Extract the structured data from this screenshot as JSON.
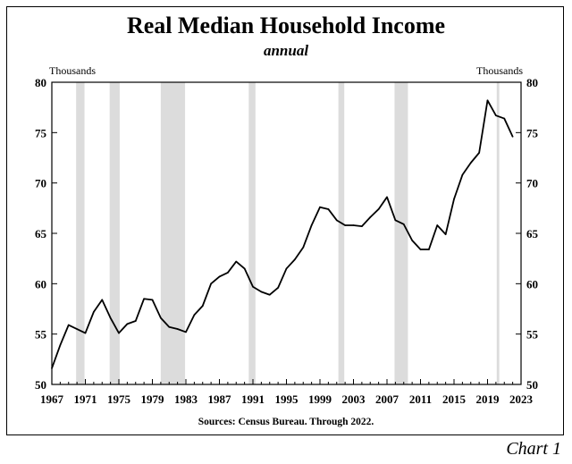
{
  "chart_data": {
    "type": "line",
    "title": "Real Median Household Income",
    "subtitle": "annual",
    "units_left": "Thousands",
    "units_right": "Thousands",
    "source": "Sources: Census Bureau.  Through  2022.",
    "xlim": [
      1967,
      2023
    ],
    "ylim": [
      50,
      80
    ],
    "yticks": [
      50,
      55,
      60,
      65,
      70,
      75,
      80
    ],
    "xticks": [
      1967,
      1971,
      1975,
      1979,
      1983,
      1987,
      1991,
      1995,
      1999,
      2003,
      2007,
      2011,
      2015,
      2019,
      2023
    ],
    "recessions": [
      [
        1969.9,
        1970.9
      ],
      [
        1973.9,
        1975.1
      ],
      [
        1980.0,
        1982.9
      ],
      [
        1990.5,
        1991.3
      ],
      [
        2001.2,
        2001.9
      ],
      [
        2007.9,
        2009.5
      ],
      [
        2020.1,
        2020.4
      ]
    ],
    "series": [
      {
        "color": "#000000",
        "x": [
          1967,
          1968,
          1969,
          1970,
          1971,
          1972,
          1973,
          1974,
          1975,
          1976,
          1977,
          1978,
          1979,
          1980,
          1981,
          1982,
          1983,
          1984,
          1985,
          1986,
          1987,
          1988,
          1989,
          1990,
          1991,
          1992,
          1993,
          1994,
          1995,
          1996,
          1997,
          1998,
          1999,
          2000,
          2001,
          2002,
          2003,
          2004,
          2005,
          2006,
          2007,
          2008,
          2009,
          2010,
          2011,
          2012,
          2013,
          2014,
          2015,
          2016,
          2017,
          2018,
          2019,
          2020,
          2021,
          2022
        ],
        "values": [
          51.6,
          53.9,
          55.9,
          55.5,
          55.1,
          57.2,
          58.4,
          56.6,
          55.1,
          56.0,
          56.3,
          58.5,
          58.4,
          56.6,
          55.7,
          55.5,
          55.2,
          56.9,
          57.8,
          60.0,
          60.7,
          61.1,
          62.2,
          61.5,
          59.7,
          59.2,
          58.9,
          59.6,
          61.5,
          62.4,
          63.6,
          65.8,
          67.6,
          67.4,
          66.3,
          65.8,
          65.8,
          65.7,
          66.6,
          67.4,
          68.6,
          66.3,
          65.9,
          64.3,
          63.4,
          63.4,
          65.8,
          64.9,
          68.4,
          70.8,
          72.0,
          73.0,
          78.2,
          76.7,
          76.4,
          74.6
        ]
      }
    ],
    "grid": false
  },
  "corner_label": "Chart 1"
}
